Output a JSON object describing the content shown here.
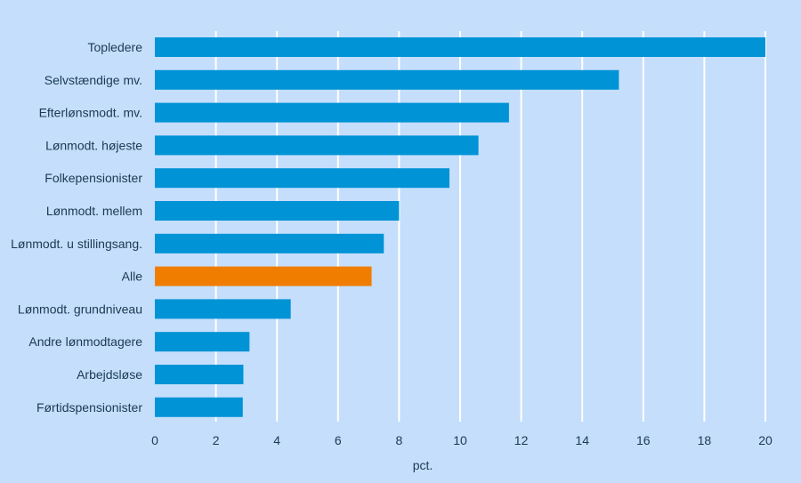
{
  "chart_data": {
    "type": "bar",
    "orientation": "horizontal",
    "title": "",
    "xlabel": "pct.",
    "ylabel": "",
    "xlim": [
      0,
      20
    ],
    "x_ticks": [
      0,
      2,
      4,
      6,
      8,
      10,
      12,
      14,
      16,
      18,
      20
    ],
    "grid": true,
    "highlight_category": "Alle",
    "colors": {
      "default": "#0093d6",
      "highlight": "#f07d00",
      "grid": "#ffffff",
      "background": "#c4defc"
    },
    "categories": [
      "Topledere",
      "Selvstændige mv.",
      "Efterlønsmodt. mv.",
      "Lønmodt. højeste",
      "Folkepensionister",
      "Lønmodt. mellem",
      "Lønmodt. u stillingsang.",
      "Alle",
      "Lønmodt. grundniveau",
      "Andre lønmodtagere",
      "Arbejdsløse",
      "Førtidspensionister"
    ],
    "values": [
      20.0,
      15.2,
      11.6,
      10.6,
      9.65,
      8.0,
      7.5,
      7.1,
      4.45,
      3.1,
      2.9,
      2.88
    ]
  }
}
